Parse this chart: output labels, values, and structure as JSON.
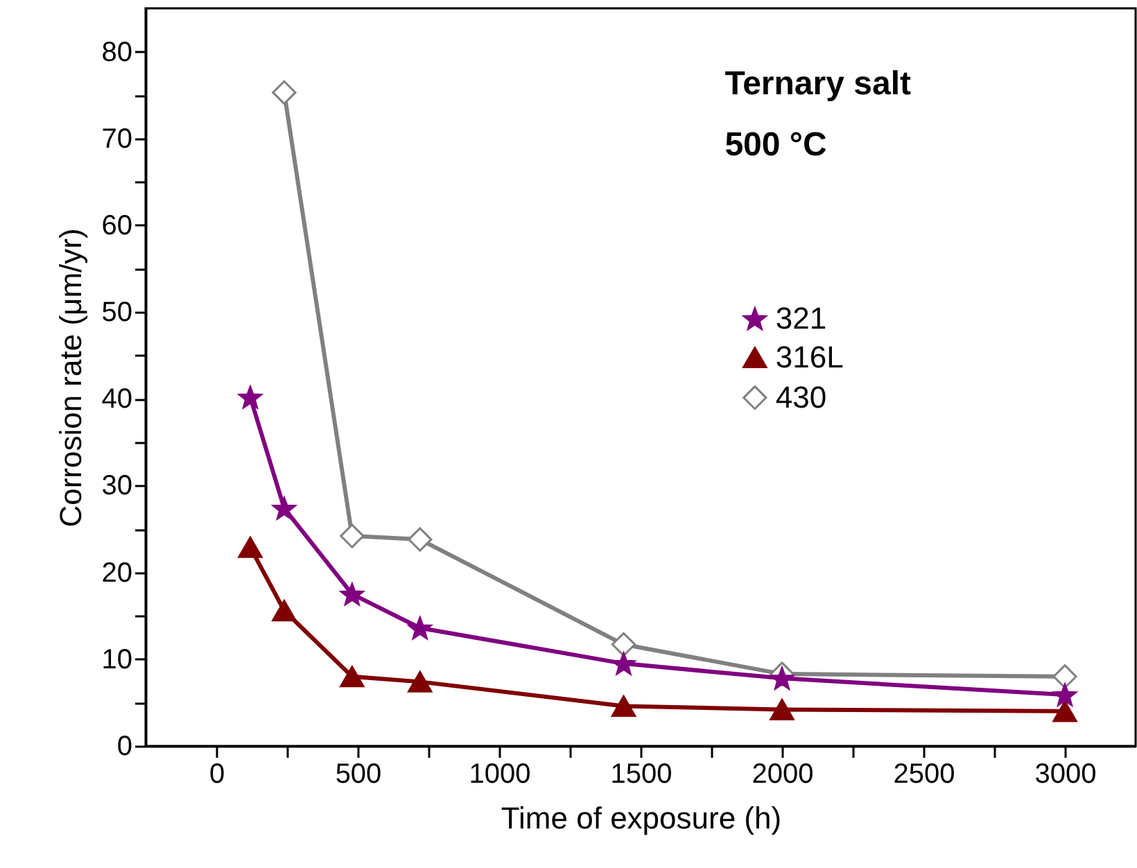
{
  "chart_data": {
    "type": "line",
    "xlabel": "Time of exposure (h)",
    "ylabel": "Corrosion rate (μm/yr)",
    "annotations": [
      "Ternary salt",
      "500 °C"
    ],
    "x": [
      120,
      240,
      480,
      720,
      1440,
      2000,
      3000
    ],
    "series": [
      {
        "name": "321",
        "color": "#800080",
        "marker": "star",
        "values": [
          40.2,
          27.4,
          17.5,
          13.6,
          9.5,
          7.8,
          5.9
        ]
      },
      {
        "name": "316L",
        "color": "#800000",
        "marker": "triangle",
        "values": [
          22.9,
          15.6,
          8.0,
          7.4,
          4.6,
          4.2,
          4.0
        ]
      },
      {
        "name": "430",
        "color": "#808080",
        "marker": "diamond",
        "values": [
          null,
          75.3,
          24.2,
          23.8,
          11.7,
          8.3,
          8.0
        ]
      }
    ],
    "xlim": [
      -250,
      3250
    ],
    "xticks": [
      0,
      {
        "value": 250,
        "label": null
      },
      500,
      {
        "value": 750,
        "label": null
      },
      1000,
      {
        "value": 1250,
        "label": null
      },
      1500,
      {
        "value": 1750,
        "label": null
      },
      2000,
      {
        "value": 2250,
        "label": null
      },
      2500,
      {
        "value": 2750,
        "label": null
      },
      3000
    ],
    "ylim": [
      0,
      85
    ],
    "yticks": [
      0,
      {
        "value": 5,
        "label": null
      },
      10,
      {
        "value": 15,
        "label": null
      },
      20,
      {
        "value": 25,
        "label": null
      },
      30,
      {
        "value": 35,
        "label": null
      },
      40,
      {
        "value": 45,
        "label": null
      },
      50,
      {
        "value": 55,
        "label": null
      },
      60,
      {
        "value": 65,
        "label": null
      },
      70,
      {
        "value": 75,
        "label": null
      },
      80
    ],
    "legend": "right",
    "grid": false,
    "line_style": "solid"
  }
}
